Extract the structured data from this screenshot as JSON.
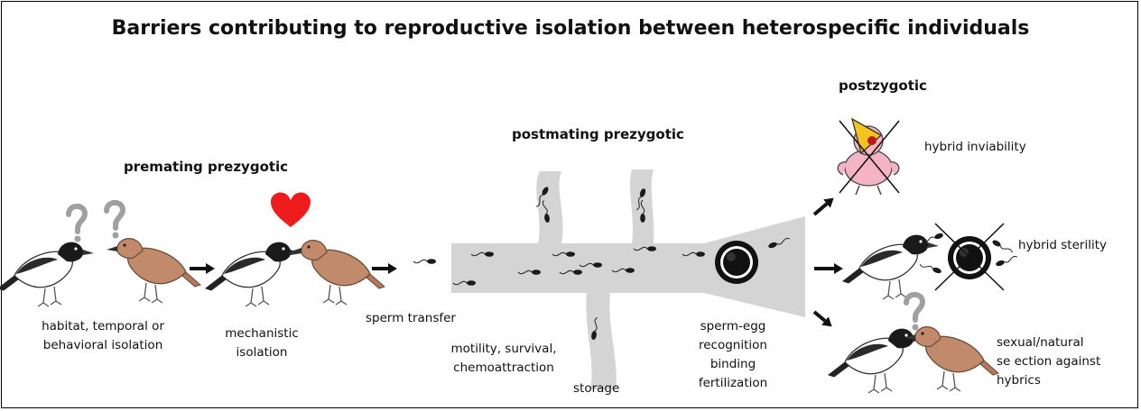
{
  "title": "Barriers contributing to reproductive isolation between heterospecific individuals",
  "headings": {
    "premating": "premating prezygotic",
    "postmating": "postmating prezygotic",
    "postzygotic": "postzygotic"
  },
  "labels": {
    "habitat_line1": "habitat, temporal or",
    "habitat_line2": "behavioral isolation",
    "mechanistic_line1": "mechanistic",
    "mechanistic_line2": "isolation",
    "sperm_transfer": "sperm transfer",
    "motility_line1": "motility, survival,",
    "motility_line2": "chemoattraction",
    "storage": "storage",
    "egg_line1": "sperm-egg",
    "egg_line2": "recognition",
    "egg_line3": "binding",
    "egg_line4": "fertilization",
    "inviability": "hybrid inviability",
    "sterility": "hybrid sterility",
    "selection_line1": "sexual/natural",
    "selection_line2": "se ection against",
    "selection_line3": "hybrics"
  },
  "colors": {
    "tract_gray": "#d4d4d4",
    "heart_red": "#ee1c1c",
    "question_gray": "#a0a0a0",
    "bird_brown": "#c08a6b",
    "hybrid_pink": "#f4b4c4",
    "beak_yellow": "#f4c41c"
  }
}
